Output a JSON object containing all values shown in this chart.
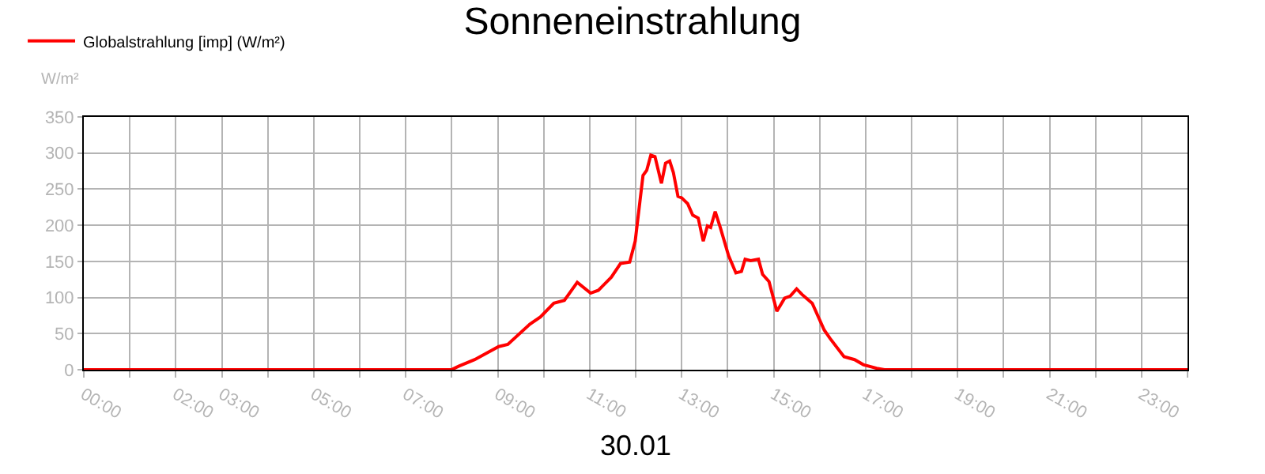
{
  "chart_data": {
    "type": "line",
    "title": "Sonneneinstrahlung",
    "xlabel": "30.01",
    "ylabel": "W/m²",
    "x": [
      0,
      7.99,
      8.16,
      8.5,
      9.02,
      9.22,
      9.7,
      9.93,
      10.22,
      10.45,
      10.73,
      11.02,
      11.19,
      11.47,
      11.67,
      11.87,
      11.99,
      12.16,
      12.24,
      12.33,
      12.42,
      12.56,
      12.65,
      12.74,
      12.82,
      12.92,
      13.0,
      13.13,
      13.24,
      13.36,
      13.47,
      13.56,
      13.63,
      13.73,
      13.84,
      14.02,
      14.18,
      14.3,
      14.38,
      14.5,
      14.67,
      14.76,
      14.9,
      15.07,
      15.24,
      15.36,
      15.5,
      15.62,
      15.84,
      16.1,
      16.23,
      16.53,
      16.76,
      16.95,
      17.24,
      17.41,
      24
    ],
    "series": [
      {
        "name": "Globalstrahlung [imp] (W/m²)",
        "color": "#ff0000",
        "values": [
          0,
          0,
          5,
          14,
          32,
          35,
          63,
          73,
          92,
          96,
          121,
          106,
          110,
          128,
          147,
          149,
          178,
          269,
          276,
          297,
          295,
          258,
          286,
          289,
          273,
          240,
          238,
          230,
          214,
          210,
          178,
          199,
          197,
          219,
          197,
          158,
          134,
          136,
          153,
          151,
          153,
          132,
          122,
          81,
          99,
          102,
          112,
          104,
          92,
          55,
          43,
          18,
          14,
          7,
          2,
          0,
          0
        ]
      }
    ],
    "xlim": [
      0,
      24
    ],
    "xticks": [
      {
        "value": 0,
        "label": "00:00"
      },
      {
        "value": 1,
        "label": null
      },
      {
        "value": 2,
        "label": "02:00"
      },
      {
        "value": 3,
        "label": "03:00"
      },
      {
        "value": 4,
        "label": null
      },
      {
        "value": 5,
        "label": "05:00"
      },
      {
        "value": 6,
        "label": null
      },
      {
        "value": 7,
        "label": "07:00"
      },
      {
        "value": 8,
        "label": null
      },
      {
        "value": 9,
        "label": "09:00"
      },
      {
        "value": 10,
        "label": null
      },
      {
        "value": 11,
        "label": "11:00"
      },
      {
        "value": 12,
        "label": null
      },
      {
        "value": 13,
        "label": "13:00"
      },
      {
        "value": 14,
        "label": null
      },
      {
        "value": 15,
        "label": "15:00"
      },
      {
        "value": 16,
        "label": null
      },
      {
        "value": 17,
        "label": "17:00"
      },
      {
        "value": 18,
        "label": null
      },
      {
        "value": 19,
        "label": "19:00"
      },
      {
        "value": 20,
        "label": null
      },
      {
        "value": 21,
        "label": "21:00"
      },
      {
        "value": 22,
        "label": null
      },
      {
        "value": 23,
        "label": "23:00"
      },
      {
        "value": 24,
        "label": null
      }
    ],
    "ylim": [
      0,
      350
    ],
    "yticks": [
      0,
      50,
      100,
      150,
      200,
      250,
      300,
      350
    ],
    "grid": true,
    "legend": "top left",
    "marker": "none",
    "line_style": "solid"
  }
}
